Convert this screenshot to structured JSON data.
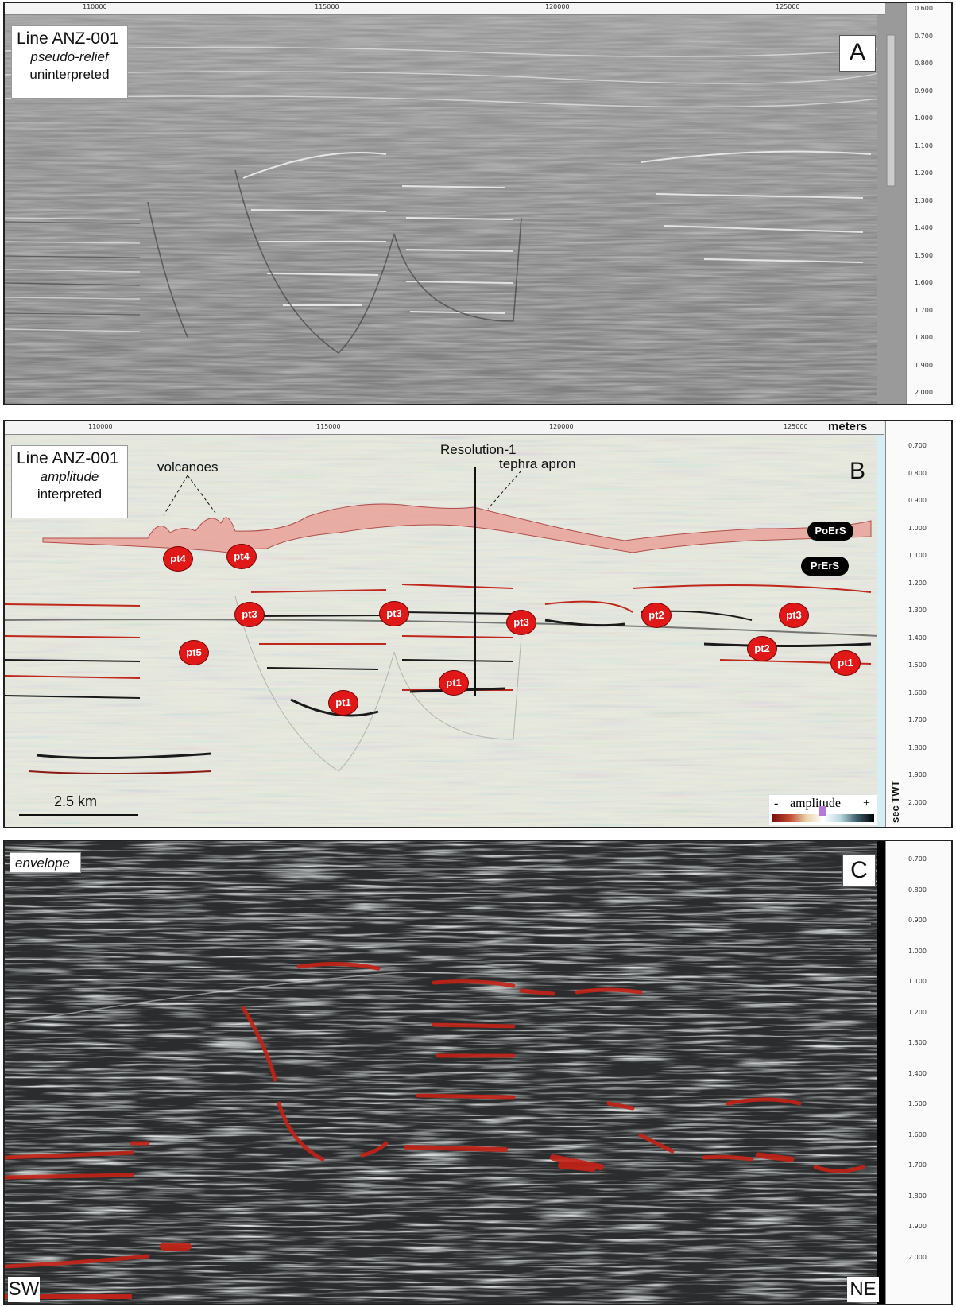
{
  "panels": [
    {
      "id": "A",
      "letter": "A",
      "title": "Line ANZ-001",
      "attribute": "pseudo-relief",
      "status": "uninterpreted",
      "x_ticks": [
        "110000",
        "115000",
        "120000",
        "125000"
      ],
      "y_ticks": [
        "0.600",
        "0.700",
        "0.800",
        "0.900",
        "1.000",
        "1.100",
        "1.200",
        "1.300",
        "1.400",
        "1.500",
        "1.600",
        "1.700",
        "1.800",
        "1.900",
        "2.000"
      ]
    },
    {
      "id": "B",
      "letter": "B",
      "title": "Line ANZ-001",
      "attribute": "amplitude",
      "status": "interpreted",
      "x_ticks": [
        "110000",
        "115000",
        "120000",
        "125000"
      ],
      "x_unit": "meters",
      "y_ticks": [
        "0.700",
        "0.800",
        "0.900",
        "1.000",
        "1.100",
        "1.200",
        "1.300",
        "1.400",
        "1.500",
        "1.600",
        "1.700",
        "1.800",
        "1.900",
        "2.000"
      ],
      "y_unit": "sec TWT",
      "well": "Resolution-1",
      "annotations": {
        "volcanoes": "volcanoes",
        "tephra_apron": "tephra apron",
        "surface_upper": "PoErS",
        "surface_lower": "PrErS"
      },
      "markers": [
        "pt4",
        "pt4",
        "pt5",
        "pt3",
        "pt3",
        "pt3",
        "pt2",
        "pt3",
        "pt2",
        "pt1",
        "pt1",
        "pt1"
      ],
      "scale_bar": "2.5 km",
      "legend": {
        "minus": "-",
        "label": "amplitude",
        "plus": "+"
      }
    },
    {
      "id": "C",
      "letter": "C",
      "attribute": "envelope",
      "y_ticks": [
        "0.700",
        "0.800",
        "0.900",
        "1.000",
        "1.100",
        "1.200",
        "1.300",
        "1.400",
        "1.500",
        "1.600",
        "1.700",
        "1.800",
        "1.900",
        "2.000"
      ],
      "sw": "SW",
      "ne": "NE"
    }
  ],
  "colors": {
    "marker_red": "#e01818",
    "apron_fill": "#e9a39a",
    "envelope_bg": "#2a2c2e",
    "relief_bg": "#8a8a8a"
  }
}
